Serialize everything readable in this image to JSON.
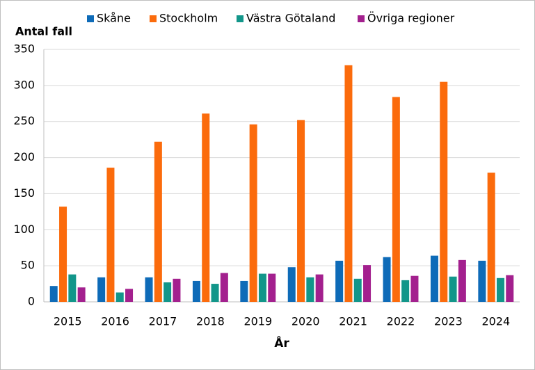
{
  "chart_data": {
    "type": "bar",
    "y_label": "Antal fall",
    "x_label": "År",
    "categories": [
      "2015",
      "2016",
      "2017",
      "2018",
      "2019",
      "2020",
      "2021",
      "2022",
      "2023",
      "2024"
    ],
    "series": [
      {
        "name": "Skåne",
        "color": "#0e6bb8",
        "values": [
          22,
          34,
          34,
          29,
          29,
          48,
          57,
          62,
          64,
          57
        ]
      },
      {
        "name": "Stockholm",
        "color": "#fb6b0c",
        "values": [
          132,
          186,
          222,
          261,
          246,
          252,
          328,
          284,
          305,
          179
        ]
      },
      {
        "name": "Västra Götaland",
        "color": "#12968a",
        "values": [
          38,
          13,
          27,
          25,
          39,
          34,
          32,
          30,
          35,
          33
        ]
      },
      {
        "name": "Övriga regioner",
        "color": "#a3208e",
        "values": [
          20,
          18,
          32,
          40,
          39,
          38,
          51,
          36,
          58,
          37
        ]
      }
    ],
    "ylim": [
      0,
      350
    ],
    "yticks": [
      0,
      50,
      100,
      150,
      200,
      250,
      300,
      350
    ],
    "grid": true
  }
}
